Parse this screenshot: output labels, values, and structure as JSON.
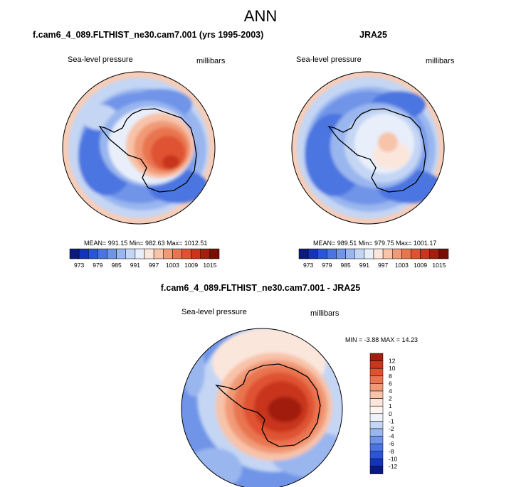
{
  "page": {
    "title": "ANN"
  },
  "panels": [
    {
      "case_title": "f.cam6_4_089.FLTHIST_ne30.cam7.001 (yrs 1995-2003)",
      "variable": "Sea-level pressure",
      "units": "millibars",
      "stats": "MEAN= 991.15  Min= 982.63  Max= 1012.51"
    },
    {
      "case_title": "JRA25",
      "variable": "Sea-level pressure",
      "units": "millibars",
      "stats": "MEAN= 989.51  Min= 979.75  Max= 1001.17"
    },
    {
      "case_title": "f.cam6_4_089.FLTHIST_ne30.cam7.001 - JRA25",
      "variable": "Sea-level pressure",
      "units": "millibars",
      "stats": "MIN =  -3.88 MAX =  14.23"
    }
  ],
  "chart_data": [
    {
      "type": "heatmap",
      "projection": "south polar stereographic",
      "title": "f.cam6_4_089.FLTHIST_ne30.cam7.001 (yrs 1995-2003)",
      "variable": "Sea-level pressure",
      "units": "millibars",
      "mean": 991.15,
      "min": 982.63,
      "max": 1012.51,
      "colorbar_orientation": "horizontal",
      "colorbar_tick_labels": [
        "973",
        "979",
        "985",
        "991",
        "997",
        "1003",
        "1009",
        "1015"
      ],
      "colorbar_colors": [
        "#0a1a80",
        "#1533b8",
        "#2a55d8",
        "#4b74e0",
        "#6f94e8",
        "#9ab6ef",
        "#c4d6f4",
        "#e8eefa",
        "#fbe6dc",
        "#f7c3a9",
        "#f19a78",
        "#e97550",
        "#df5230",
        "#c8361c",
        "#a21f10",
        "#7a0c06"
      ]
    },
    {
      "type": "heatmap",
      "projection": "south polar stereographic",
      "title": "JRA25",
      "variable": "Sea-level pressure",
      "units": "millibars",
      "mean": 989.51,
      "min": 979.75,
      "max": 1001.17,
      "colorbar_orientation": "horizontal",
      "colorbar_tick_labels": [
        "973",
        "979",
        "985",
        "991",
        "997",
        "1003",
        "1009",
        "1015"
      ],
      "colorbar_colors": [
        "#0a1a80",
        "#1533b8",
        "#2a55d8",
        "#4b74e0",
        "#6f94e8",
        "#9ab6ef",
        "#c4d6f4",
        "#e8eefa",
        "#fbe6dc",
        "#f7c3a9",
        "#f19a78",
        "#e97550",
        "#df5230",
        "#c8361c",
        "#a21f10",
        "#7a0c06"
      ]
    },
    {
      "type": "heatmap",
      "projection": "south polar stereographic",
      "title": "f.cam6_4_089.FLTHIST_ne30.cam7.001 - JRA25",
      "variable": "Sea-level pressure",
      "units": "millibars",
      "min": -3.88,
      "max": 14.23,
      "colorbar_orientation": "vertical",
      "colorbar_tick_labels": [
        "12",
        "10",
        "8",
        "6",
        "4",
        "2",
        "1",
        "0",
        "-1",
        "-2",
        "-4",
        "-6",
        "-8",
        "-10",
        "-12"
      ],
      "colorbar_colors": [
        "#a21f10",
        "#c8361c",
        "#df5230",
        "#e97550",
        "#f19a78",
        "#f7c3a9",
        "#fbe6dc",
        "#fdf4ee",
        "#eef3fb",
        "#c4d6f4",
        "#9ab6ef",
        "#6f94e8",
        "#4b74e0",
        "#2a55d8",
        "#1533b8",
        "#0a1a80"
      ]
    }
  ]
}
